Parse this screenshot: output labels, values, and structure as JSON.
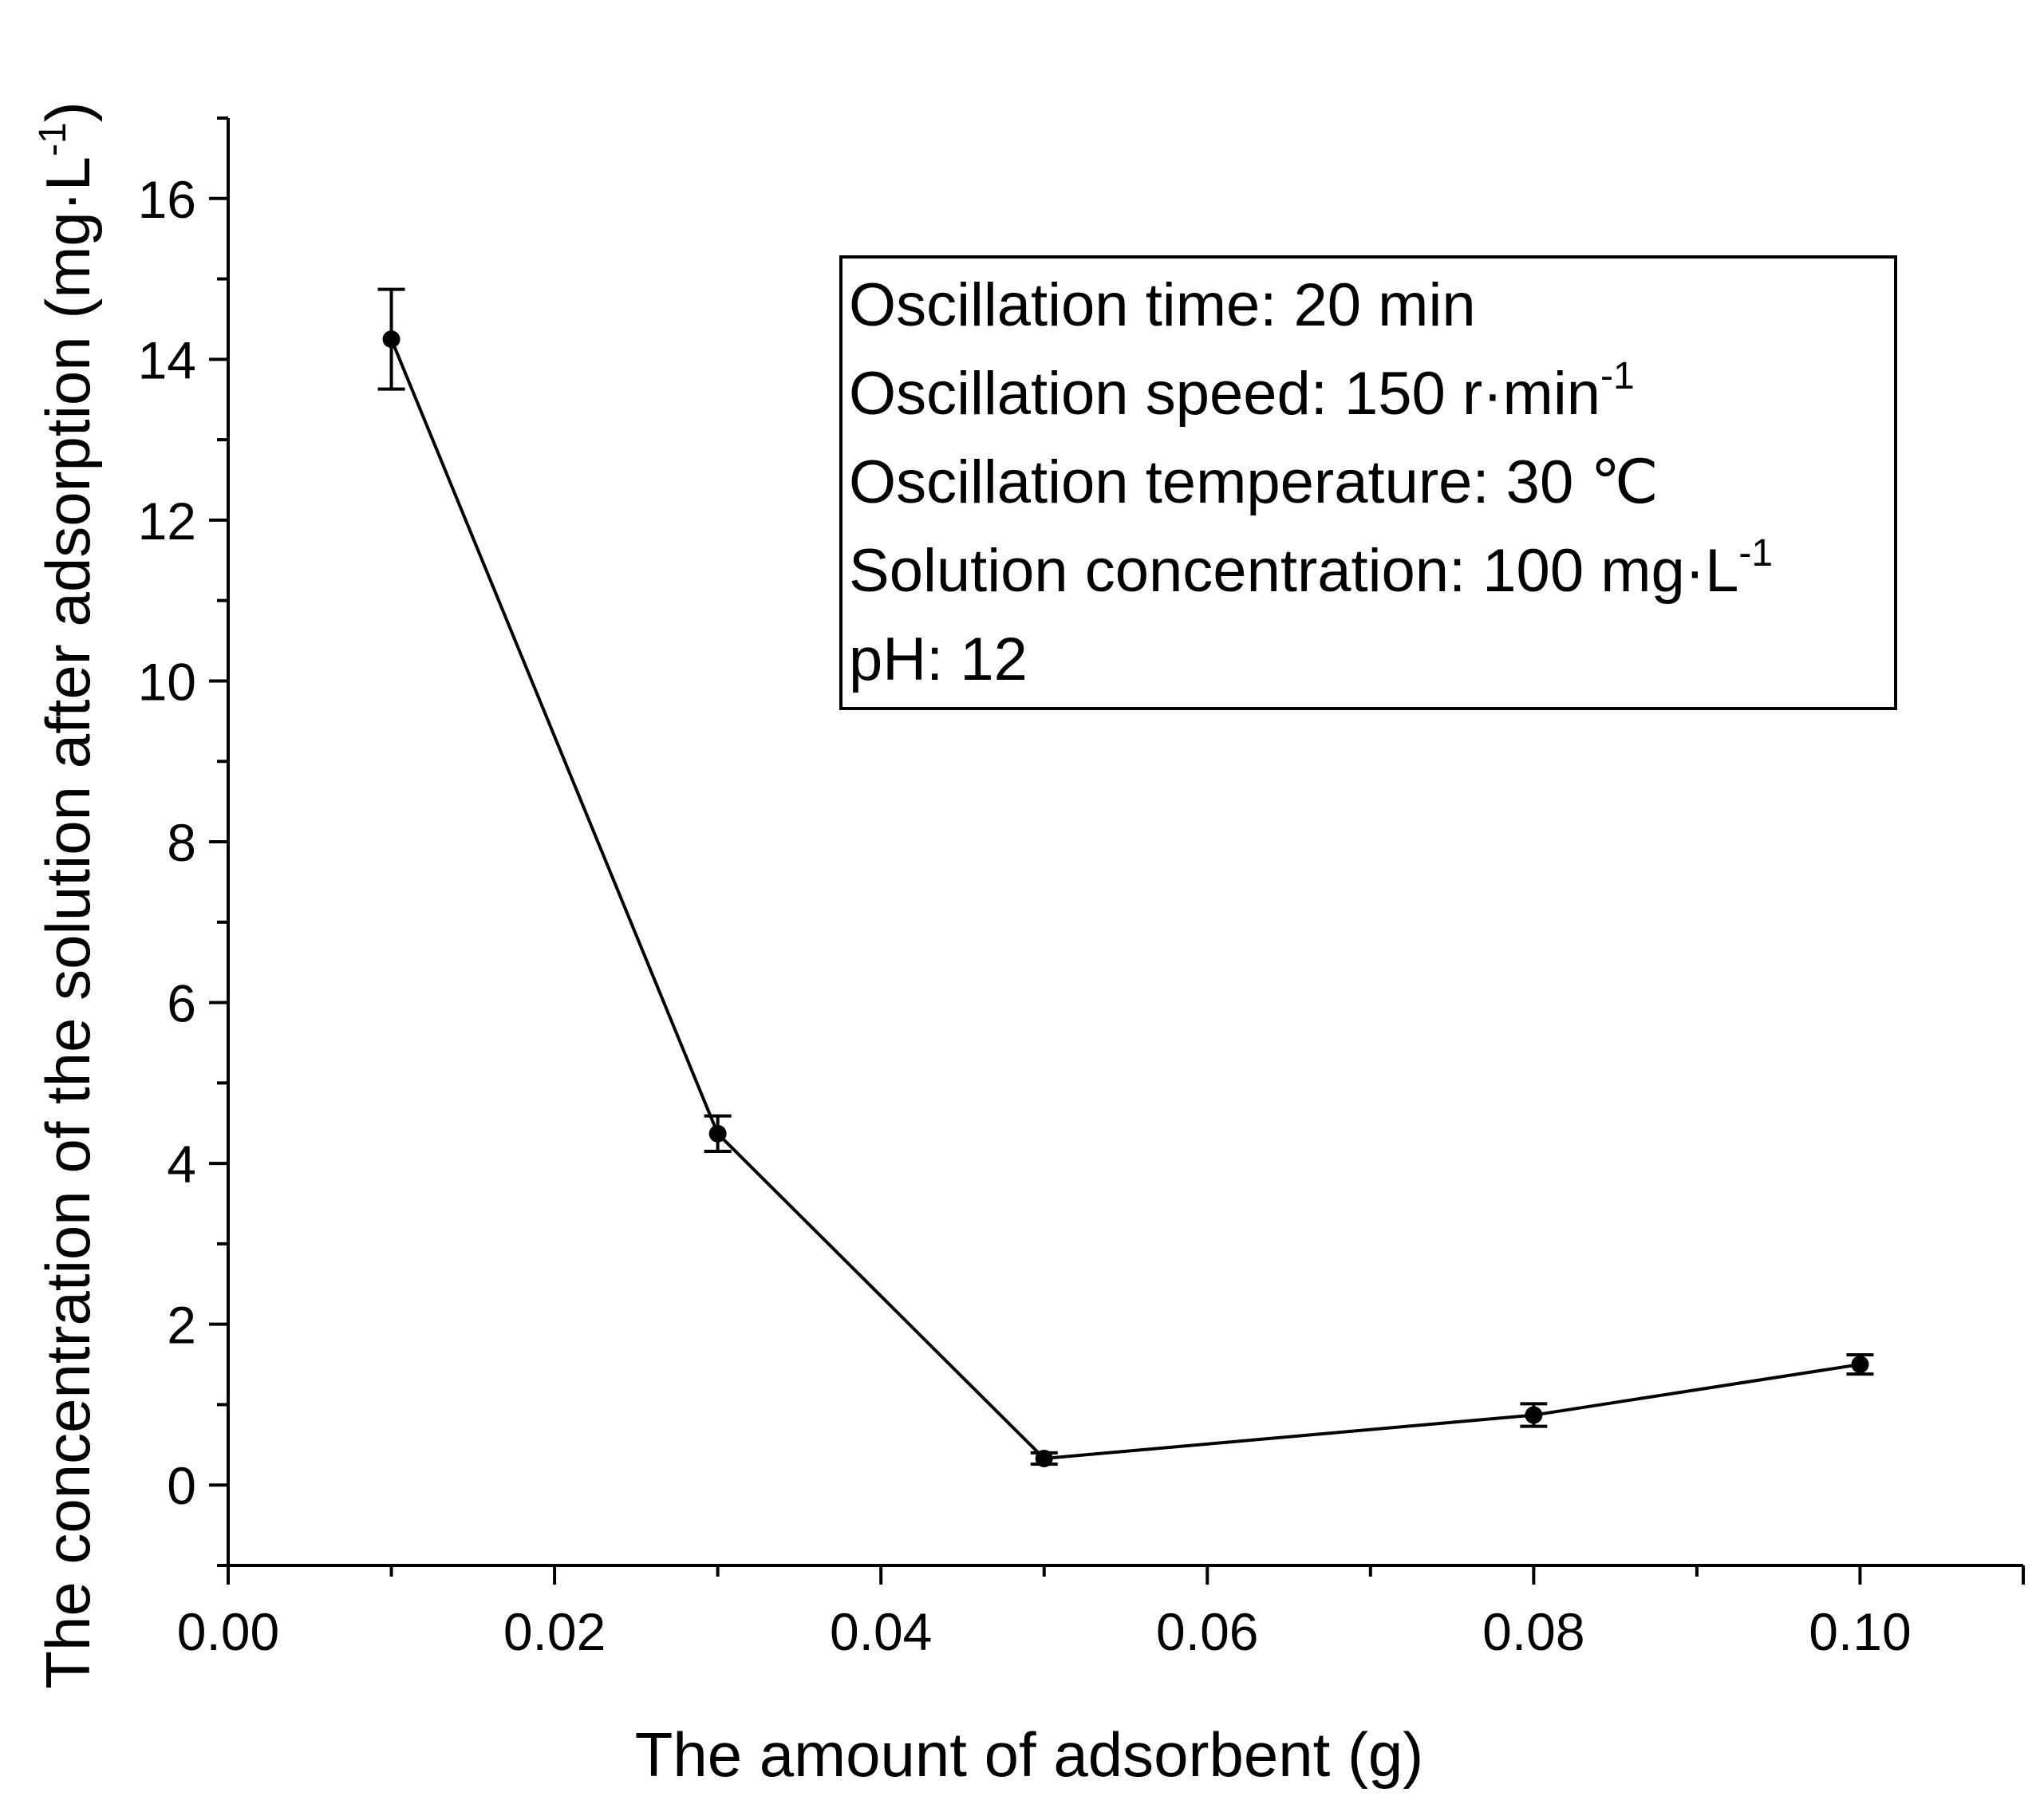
{
  "chart_data": {
    "type": "line",
    "title": "",
    "xlabel": "The amount of adsorbent (g)",
    "ylabel_main": "The concentration of the solution after adsorption (mg·L",
    "ylabel_sup": "-1",
    "ylabel_close": ")",
    "xlim": [
      0.0,
      0.11
    ],
    "ylim": [
      -1,
      17
    ],
    "x_ticks": [
      0.0,
      0.02,
      0.04,
      0.06,
      0.08,
      0.1
    ],
    "x_tick_labels": [
      "0.00",
      "0.02",
      "0.04",
      "0.06",
      "0.08",
      "0.10"
    ],
    "y_ticks": [
      0,
      2,
      4,
      6,
      8,
      10,
      12,
      14,
      16
    ],
    "y_tick_labels": [
      "0",
      "2",
      "4",
      "6",
      "8",
      "10",
      "12",
      "14",
      "16"
    ],
    "series": [
      {
        "name": "concentration",
        "x": [
          0.01,
          0.03,
          0.05,
          0.08,
          0.1
        ],
        "y": [
          14.25,
          4.37,
          0.33,
          0.87,
          1.5
        ],
        "error": [
          0.62,
          0.22,
          0.07,
          0.14,
          0.12
        ]
      }
    ],
    "legend": "none",
    "annotation_box": {
      "position": "top-right",
      "lines": [
        {
          "text": "Oscillation time: 20 min",
          "sup": ""
        },
        {
          "text": "Oscillation speed: 150 r·min",
          "sup": "-1"
        },
        {
          "text": "Oscillation temperature: 30 ℃",
          "sup": ""
        },
        {
          "text": "Solution concentration: 100 mg·L",
          "sup": "-1"
        },
        {
          "text": "pH: 12",
          "sup": ""
        }
      ]
    },
    "grid": false,
    "colors": {
      "line": "#000000",
      "marker": "#000000",
      "axis": "#000000"
    }
  }
}
